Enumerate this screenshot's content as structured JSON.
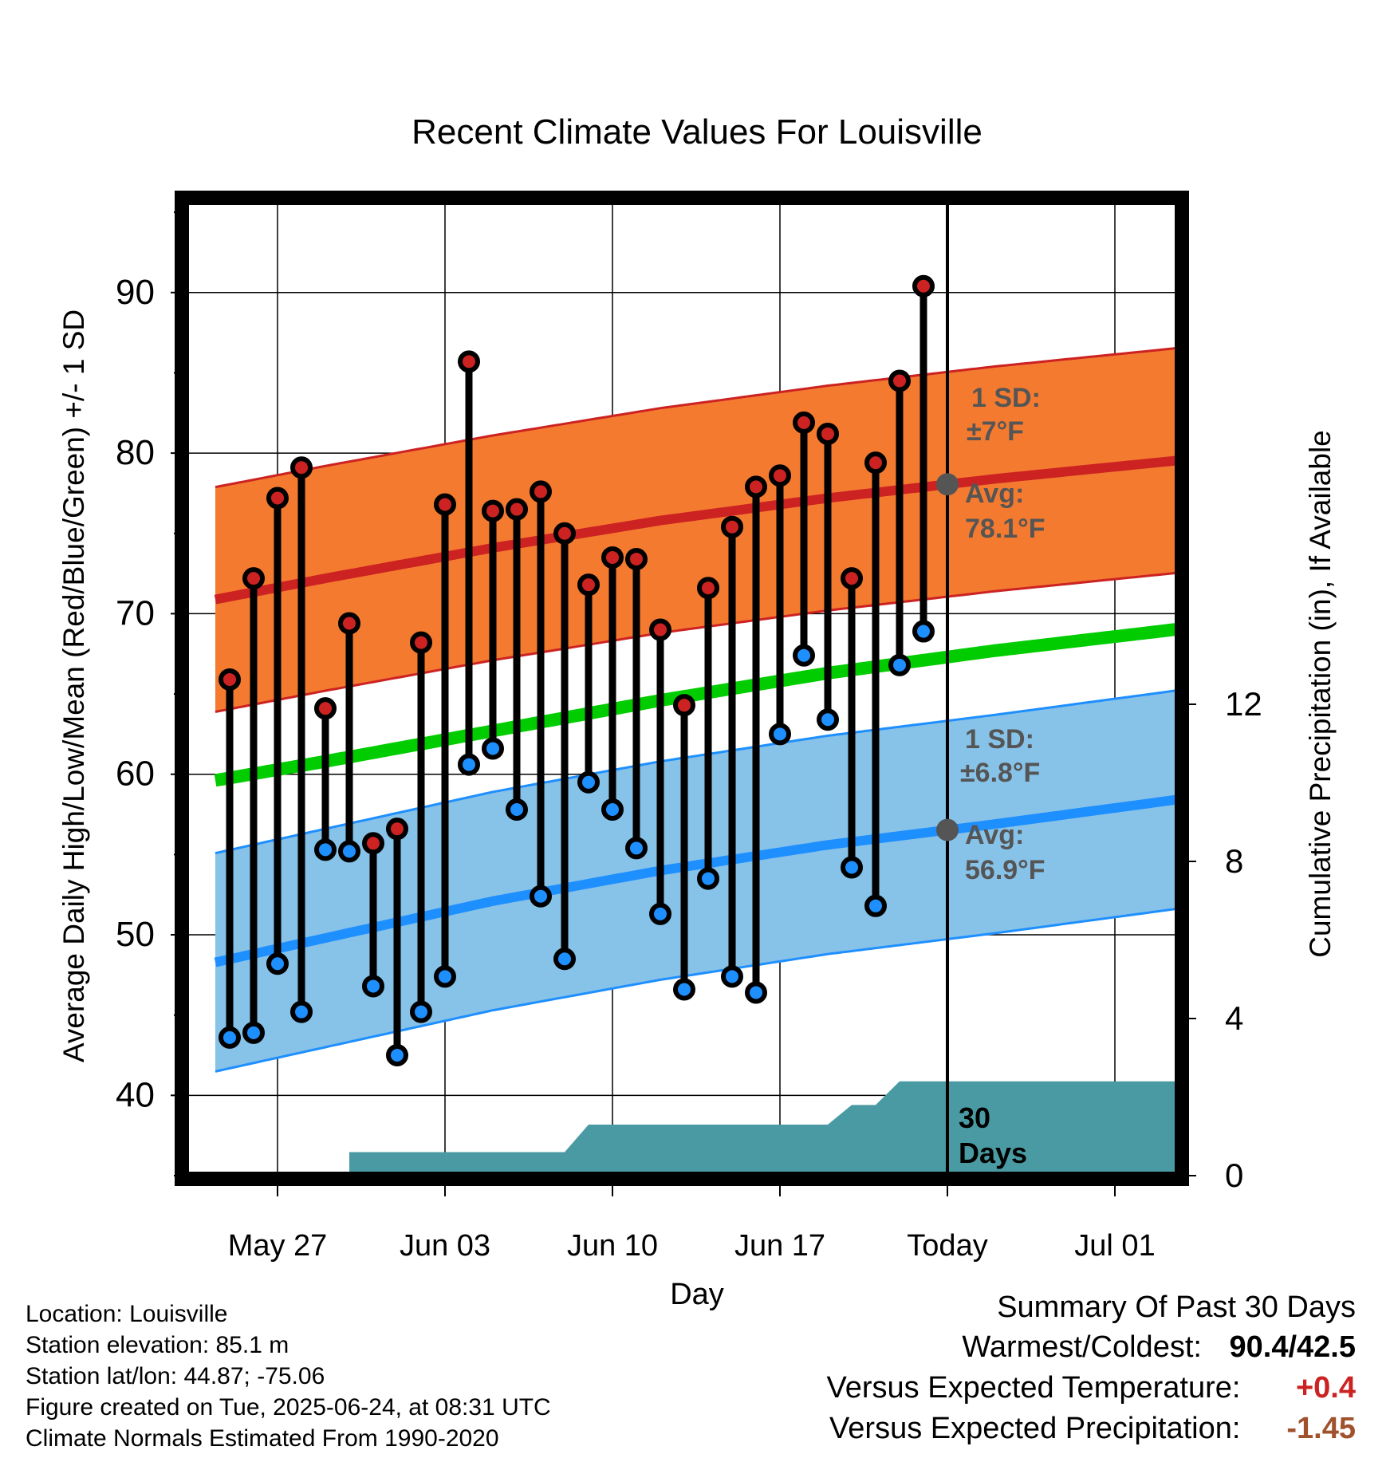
{
  "chart_data": {
    "type": "line",
    "title": "Recent Climate Values For Louisville",
    "xlabel": "Day",
    "ylabel_left": "Average Daily High/Low/Mean (Red/Blue/Green) +/- 1 SD",
    "ylabel_right": "Cumulative Precipitation (in), If Available",
    "y_range_left": [
      35,
      96
    ],
    "y_range_right": [
      0,
      30
    ],
    "y_ticks_left": [
      40,
      50,
      60,
      70,
      80,
      90
    ],
    "y_ticks_right": [
      0,
      4,
      8,
      12
    ],
    "x_range": [
      "2025-05-22",
      "2025-07-04"
    ],
    "x_ticks": [
      {
        "date": "2025-05-27",
        "label": "May 27"
      },
      {
        "date": "2025-06-03",
        "label": "Jun 03"
      },
      {
        "date": "2025-06-10",
        "label": "Jun 10"
      },
      {
        "date": "2025-06-17",
        "label": "Jun 17"
      },
      {
        "date": "2025-06-24",
        "label": "Today"
      },
      {
        "date": "2025-07-01",
        "label": "Jul 01"
      }
    ],
    "grid": true,
    "today": "2025-06-24",
    "days": [
      "2025-05-25",
      "2025-05-26",
      "2025-05-27",
      "2025-05-28",
      "2025-05-29",
      "2025-05-30",
      "2025-05-31",
      "2025-06-01",
      "2025-06-02",
      "2025-06-03",
      "2025-06-04",
      "2025-06-05",
      "2025-06-06",
      "2025-06-07",
      "2025-06-08",
      "2025-06-09",
      "2025-06-10",
      "2025-06-11",
      "2025-06-12",
      "2025-06-13",
      "2025-06-14",
      "2025-06-15",
      "2025-06-16",
      "2025-06-17",
      "2025-06-18",
      "2025-06-19",
      "2025-06-20",
      "2025-06-21",
      "2025-06-22",
      "2025-06-23"
    ],
    "series": [
      {
        "name": "High",
        "color": "#cc2222",
        "values": [
          65.9,
          72.2,
          77.2,
          79.1,
          64.1,
          69.4,
          55.7,
          56.6,
          68.2,
          76.8,
          85.7,
          76.4,
          76.5,
          77.6,
          75.0,
          71.8,
          73.5,
          73.4,
          69.0,
          64.3,
          71.6,
          75.4,
          77.9,
          78.6,
          81.9,
          81.2,
          72.2,
          79.4,
          84.5,
          90.4
        ]
      },
      {
        "name": "Low",
        "color": "#1e8fff",
        "values": [
          43.6,
          43.9,
          48.2,
          45.2,
          55.3,
          55.2,
          46.8,
          42.5,
          45.2,
          47.4,
          60.6,
          61.6,
          57.8,
          52.4,
          48.5,
          59.5,
          57.8,
          55.4,
          51.3,
          46.6,
          53.5,
          47.4,
          46.4,
          62.5,
          67.4,
          63.4,
          54.2,
          51.8,
          66.8,
          68.9
        ]
      }
    ],
    "normals": {
      "dates": [
        "2025-05-22",
        "2025-05-29",
        "2025-06-05",
        "2025-06-12",
        "2025-06-19",
        "2025-06-26",
        "2025-07-04"
      ],
      "high_avg": [
        70.2,
        72.2,
        74.1,
        75.8,
        77.2,
        78.4,
        79.6
      ],
      "low_avg": [
        47.5,
        49.8,
        52.1,
        54.0,
        55.6,
        56.9,
        58.5
      ],
      "mean": [
        59.0,
        60.8,
        62.7,
        64.6,
        66.3,
        67.7,
        69.1
      ],
      "high_sd": 7,
      "low_sd": 6.8
    },
    "precipitation": {
      "color": "#4a9aa3",
      "steps": [
        {
          "from": "2025-05-22",
          "to": "2025-05-30",
          "value": 0
        },
        {
          "from": "2025-05-30",
          "to": "2025-06-08",
          "value": 0.6
        },
        {
          "from": "2025-06-09",
          "to": "2025-06-19",
          "value": 1.3
        },
        {
          "from": "2025-06-20",
          "to": "2025-06-21",
          "value": 1.8
        },
        {
          "from": "2025-06-22",
          "to": "2025-07-04",
          "value": 2.4
        }
      ]
    },
    "annotations": {
      "high_sd_label": "1 SD:",
      "high_sd_value": "±7°F",
      "high_avg_label": "Avg:",
      "high_avg_value": "78.1°F",
      "low_sd_label": "1 SD:",
      "low_sd_value": "±6.8°F",
      "low_avg_label": "Avg:",
      "low_avg_value": "56.9°F",
      "precip_period_num": "30",
      "precip_period_unit": "Days"
    }
  },
  "info": {
    "location": "Location: Louisville",
    "elevation": "Station elevation: 85.1 m",
    "latlon": "Station lat/lon: 44.87; -75.06",
    "created": "Figure created on Tue, 2025-06-24, at 08:31 UTC",
    "normals": "Climate Normals Estimated From 1990-2020"
  },
  "summary": {
    "title": "Summary Of Past 30 Days",
    "warm_cold_label": "Warmest/Coldest:",
    "warm_cold_value": "90.4/42.5",
    "temp_label": "Versus Expected Temperature:",
    "temp_value": "+0.4",
    "temp_color": "#cc2222",
    "precip_label": "Versus Expected Precipitation:",
    "precip_value": "-1.45",
    "precip_color": "#a0522d"
  }
}
